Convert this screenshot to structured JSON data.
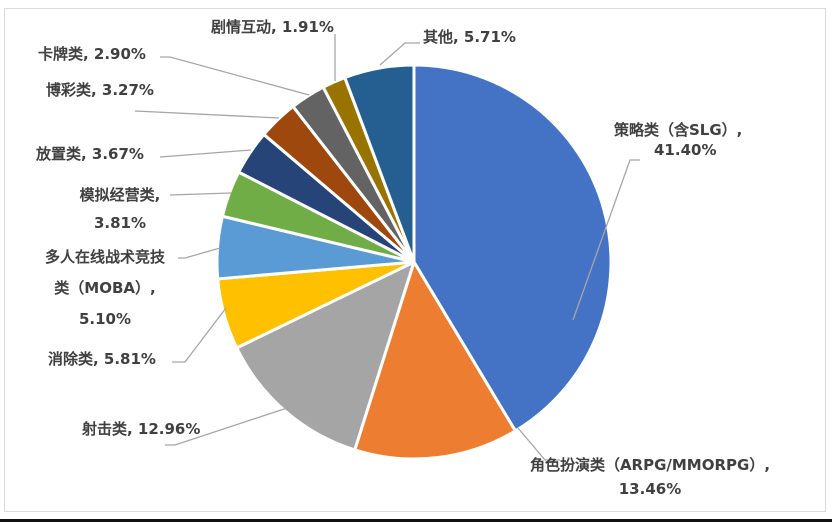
{
  "chart_data": {
    "type": "pie",
    "title": "",
    "start_angle_deg": 0,
    "direction": "clockwise",
    "categories": [
      "策略类（含SLG）",
      "角色扮演类（ARPG/MMORPG）",
      "射击类",
      "消除类",
      "多人在线战术竞技类（MOBA）",
      "模拟经营类",
      "放置类",
      "博彩类",
      "卡牌类",
      "剧情互动",
      "其他"
    ],
    "values": [
      41.4,
      13.46,
      12.96,
      5.81,
      5.1,
      3.81,
      3.67,
      3.27,
      2.9,
      1.91,
      5.71
    ],
    "unit": "%",
    "colors": [
      "#4472C4",
      "#ED7D31",
      "#A5A5A5",
      "#FFC000",
      "#5B9BD5",
      "#70AD47",
      "#264478",
      "#9E480E",
      "#636363",
      "#997300",
      "#255E91"
    ],
    "legend": "none (data labels with leader lines)"
  },
  "labels": [
    {
      "lines": [
        "策略类（含SLG）,",
        "41.40%"
      ]
    },
    {
      "lines": [
        "角色扮演类（ARPG/MMORPG）,",
        "13.46%"
      ]
    },
    {
      "lines": [
        "射击类, 12.96%"
      ]
    },
    {
      "lines": [
        "消除类, 5.81%"
      ]
    },
    {
      "lines": [
        "多人在线战术竞技",
        "类（MOBA）,",
        "5.10%"
      ]
    },
    {
      "lines": [
        "模拟经营类,",
        "3.81%"
      ]
    },
    {
      "lines": [
        "放置类, 3.67%"
      ]
    },
    {
      "lines": [
        "博彩类, 3.27%"
      ]
    },
    {
      "lines": [
        "卡牌类, 2.90%"
      ]
    },
    {
      "lines": [
        "剧情互动, 1.91%"
      ]
    },
    {
      "lines": [
        "其他, 5.71%"
      ]
    }
  ]
}
